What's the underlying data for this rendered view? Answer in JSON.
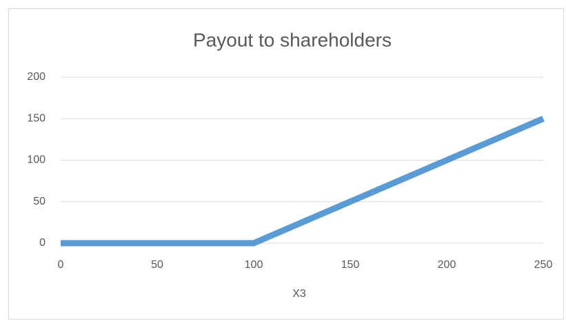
{
  "chart_data": {
    "type": "line",
    "title": "Payout to shareholders",
    "x_label": "X3",
    "x": [
      0,
      100,
      250
    ],
    "series": [
      {
        "name": null,
        "color": "#5b9bd5",
        "values": [
          0,
          0,
          150
        ]
      }
    ],
    "xlim": [
      0,
      250
    ],
    "xticks": [
      0,
      50,
      100,
      150,
      200,
      250
    ],
    "ylim": [
      0,
      200
    ],
    "yticks": [
      0,
      50,
      100,
      150,
      200
    ],
    "grid": true
  }
}
